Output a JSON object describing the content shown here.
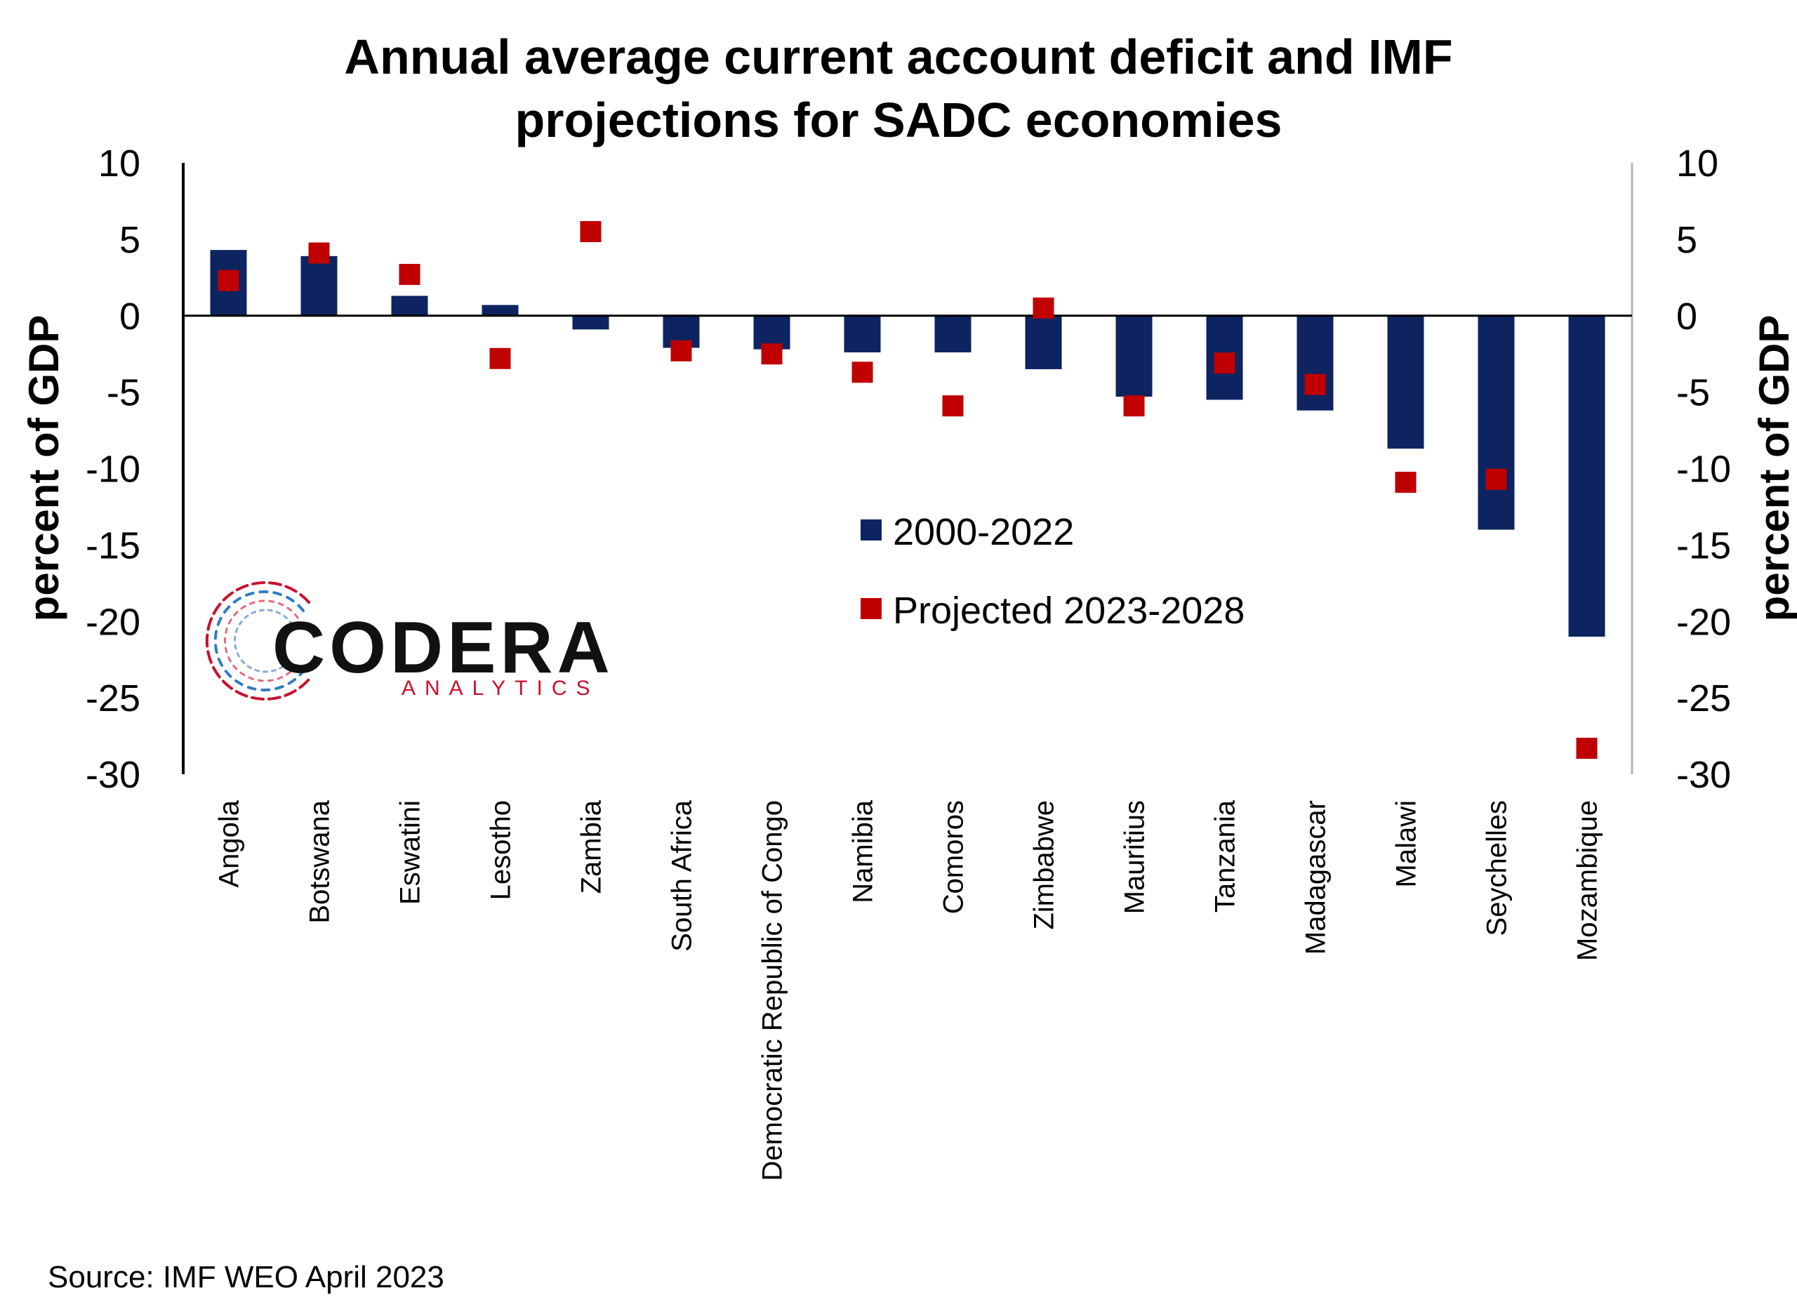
{
  "chart_data": {
    "type": "bar",
    "title": "Annual average current account deficit and IMF projections for SADC economies",
    "title_lines": [
      "Annual average current account deficit and IMF",
      "projections for SADC economies"
    ],
    "ylabel_left": "percent of GDP",
    "ylabel_right": "percent of GDP",
    "ylim": [
      -30,
      10
    ],
    "yticks": [
      10,
      5,
      0,
      -5,
      -10,
      -15,
      -20,
      -25,
      -30
    ],
    "categories": [
      "Angola",
      "Botswana",
      "Eswatini",
      "Lesotho",
      "Zambia",
      "South Africa",
      "Democratic Republic of Congo",
      "Namibia",
      "Comoros",
      "Zimbabwe",
      "Mauritius",
      "Tanzania",
      "Madagascar",
      "Malawi",
      "Seychelles",
      "Mozambique"
    ],
    "series": [
      {
        "name": "2000-2022",
        "kind": "bar",
        "color": "#0d2461",
        "values": [
          4.3,
          3.9,
          1.3,
          0.7,
          -0.9,
          -2.1,
          -2.2,
          -2.4,
          -2.4,
          -3.5,
          -5.3,
          -5.5,
          -6.2,
          -8.7,
          -14.0,
          -21.0
        ]
      },
      {
        "name": "Projected 2023-2028",
        "kind": "marker",
        "color": "#c00000",
        "values": [
          2.3,
          4.1,
          2.7,
          -2.8,
          5.5,
          -2.3,
          -2.5,
          -3.7,
          -5.9,
          0.5,
          -5.9,
          -3.1,
          -4.5,
          -10.9,
          -10.7,
          -28.3
        ]
      }
    ],
    "grid": false,
    "legend_position": "center-right"
  },
  "source": "Source: IMF WEO April 2023",
  "logo": {
    "word": "CODERA",
    "sub": "ANALYTICS",
    "colors": {
      "dark": "#111111",
      "red": "#c8102e",
      "blue": "#2f7dc1"
    }
  }
}
